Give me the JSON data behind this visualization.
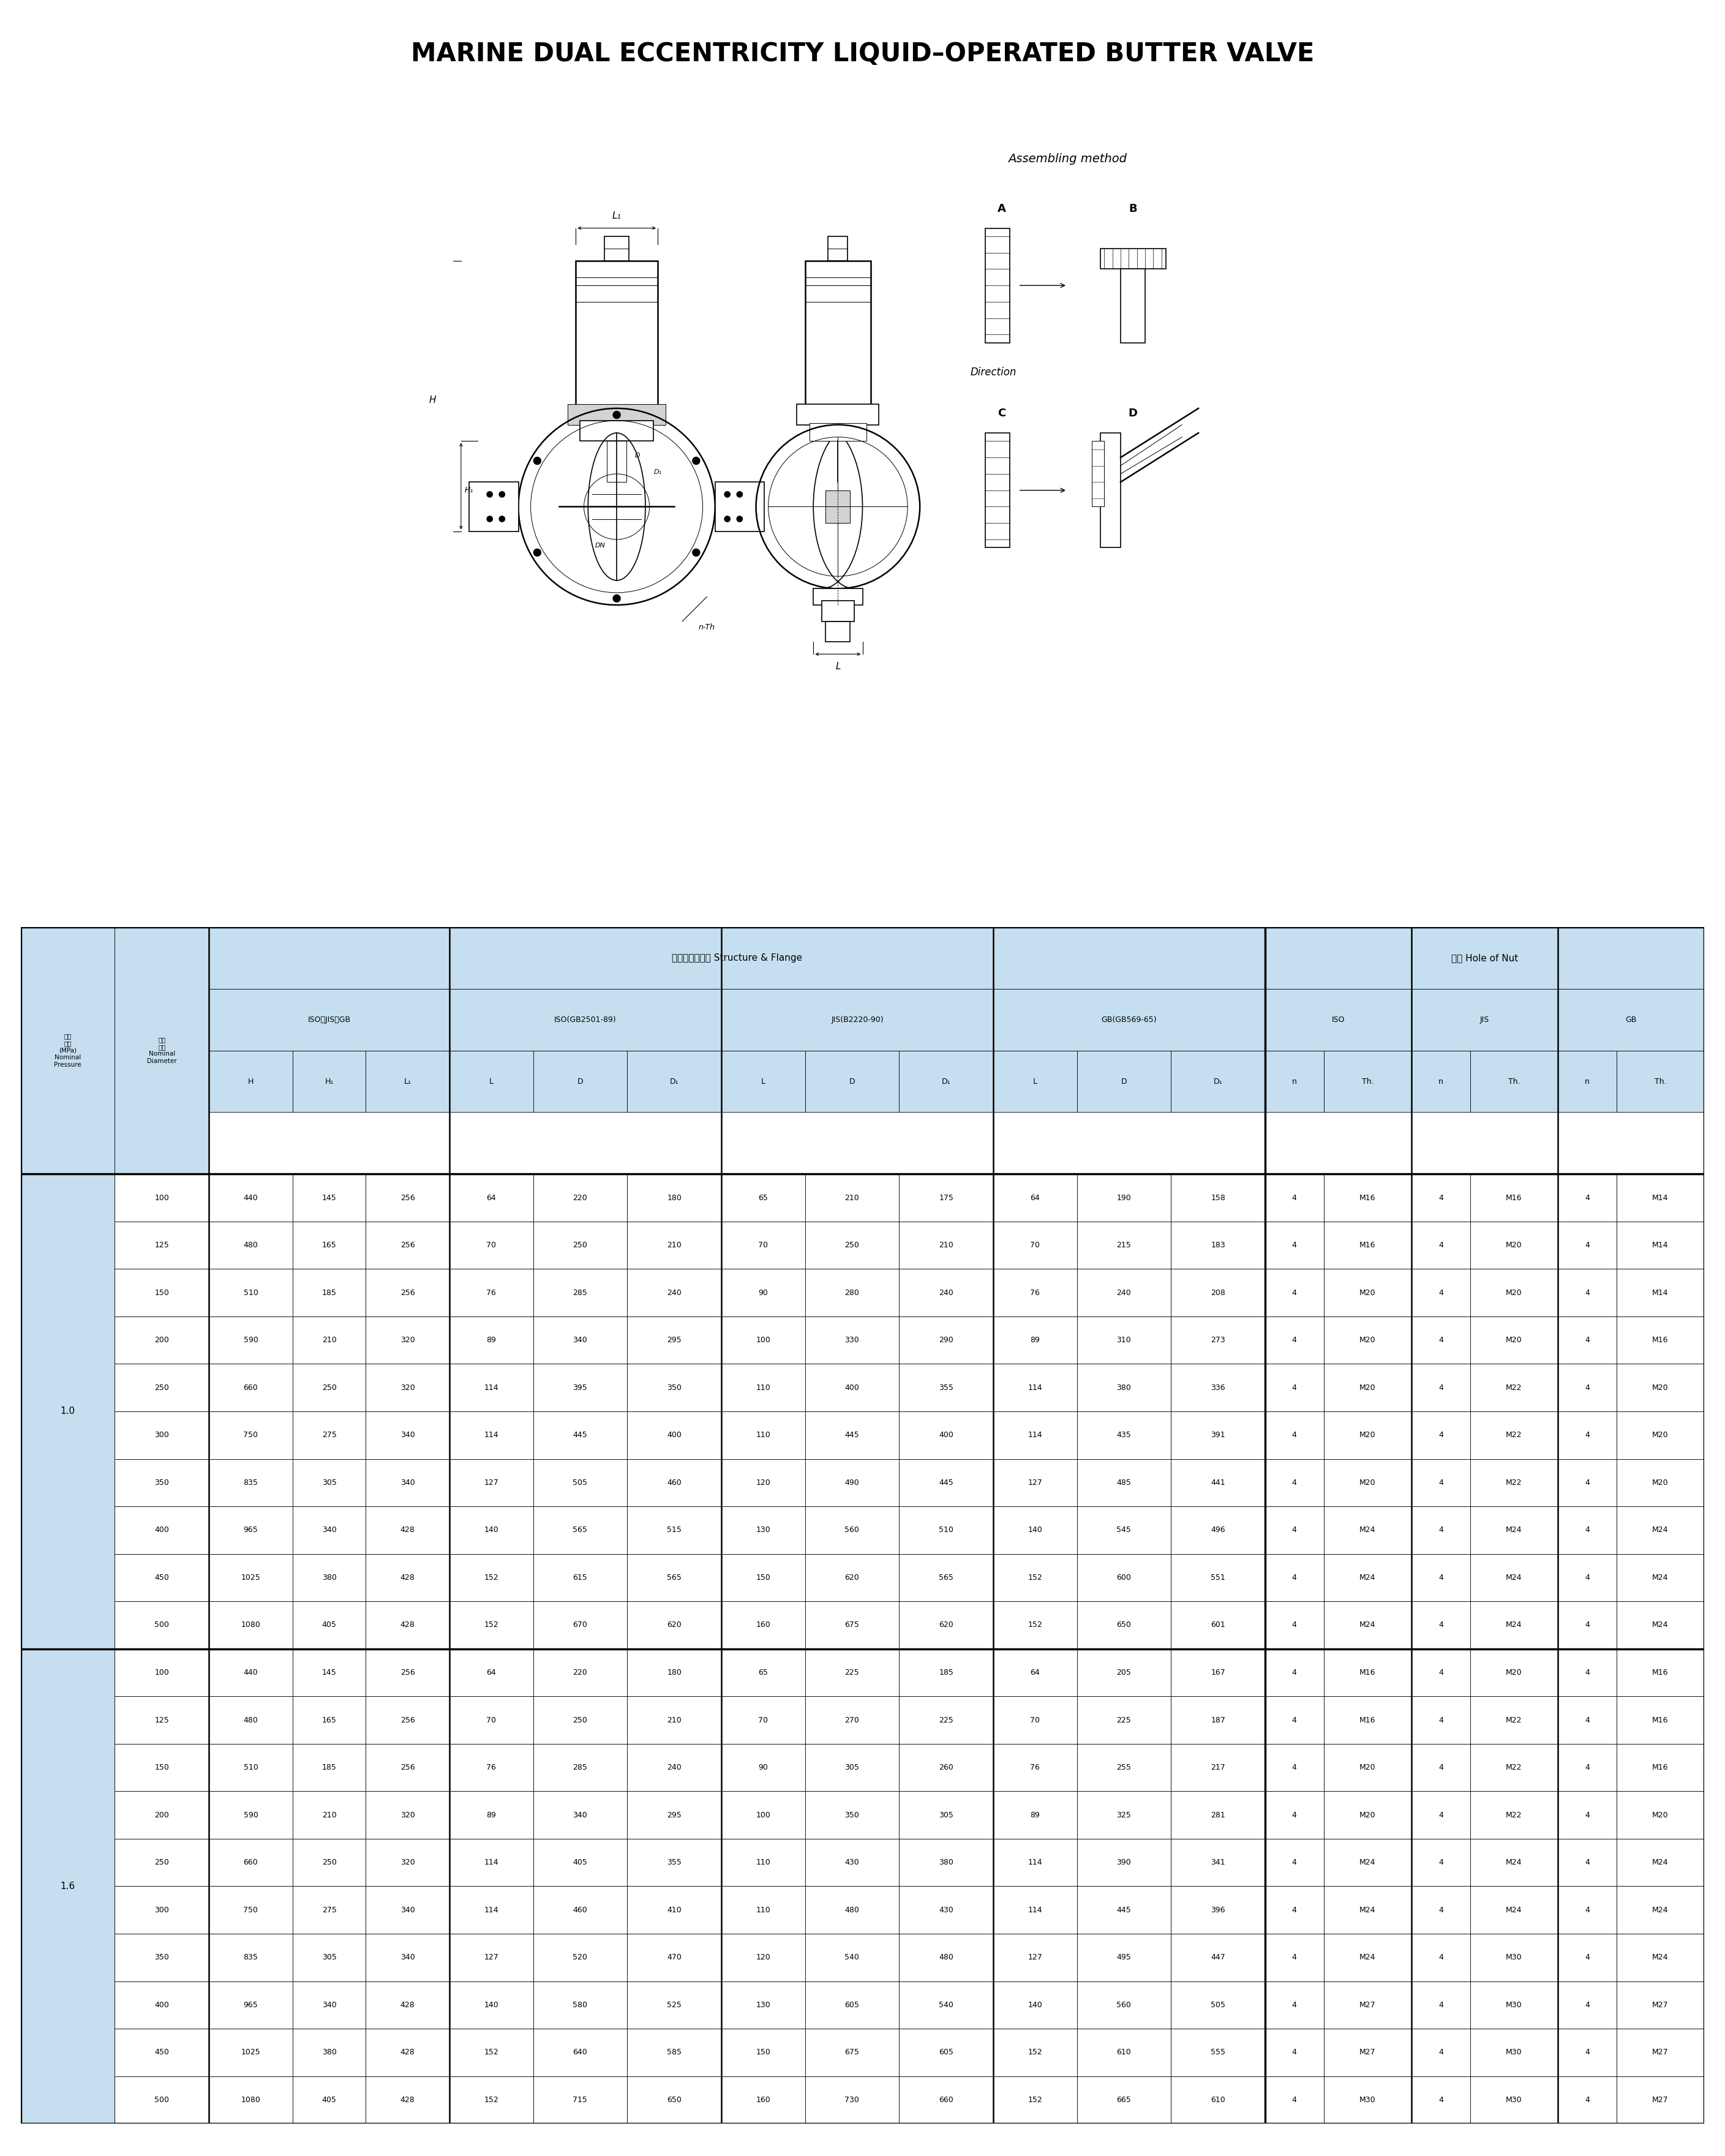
{
  "title": "MARINE DUAL ECCENTRICITY LIQUID–OPERATED BUTTER VALVE",
  "rows_1_0": [
    [
      100,
      440,
      145,
      256,
      64,
      220,
      180,
      65,
      210,
      175,
      64,
      190,
      158,
      4,
      "M16",
      4,
      "M16",
      4,
      "M14"
    ],
    [
      125,
      480,
      165,
      256,
      70,
      250,
      210,
      70,
      250,
      210,
      70,
      215,
      183,
      4,
      "M16",
      4,
      "M20",
      4,
      "M14"
    ],
    [
      150,
      510,
      185,
      256,
      76,
      285,
      240,
      90,
      280,
      240,
      76,
      240,
      208,
      4,
      "M20",
      4,
      "M20",
      4,
      "M14"
    ],
    [
      200,
      590,
      210,
      320,
      89,
      340,
      295,
      100,
      330,
      290,
      89,
      310,
      273,
      4,
      "M20",
      4,
      "M20",
      4,
      "M16"
    ],
    [
      250,
      660,
      250,
      320,
      114,
      395,
      350,
      110,
      400,
      355,
      114,
      380,
      336,
      4,
      "M20",
      4,
      "M22",
      4,
      "M20"
    ],
    [
      300,
      750,
      275,
      340,
      114,
      445,
      400,
      110,
      445,
      400,
      114,
      435,
      391,
      4,
      "M20",
      4,
      "M22",
      4,
      "M20"
    ],
    [
      350,
      835,
      305,
      340,
      127,
      505,
      460,
      120,
      490,
      445,
      127,
      485,
      441,
      4,
      "M20",
      4,
      "M22",
      4,
      "M20"
    ],
    [
      400,
      965,
      340,
      428,
      140,
      565,
      515,
      130,
      560,
      510,
      140,
      545,
      496,
      4,
      "M24",
      4,
      "M24",
      4,
      "M24"
    ],
    [
      450,
      1025,
      380,
      428,
      152,
      615,
      565,
      150,
      620,
      565,
      152,
      600,
      551,
      4,
      "M24",
      4,
      "M24",
      4,
      "M24"
    ],
    [
      500,
      1080,
      405,
      428,
      152,
      670,
      620,
      160,
      675,
      620,
      152,
      650,
      601,
      4,
      "M24",
      4,
      "M24",
      4,
      "M24"
    ]
  ],
  "rows_1_6": [
    [
      100,
      440,
      145,
      256,
      64,
      220,
      180,
      65,
      225,
      185,
      64,
      205,
      167,
      4,
      "M16",
      4,
      "M20",
      4,
      "M16"
    ],
    [
      125,
      480,
      165,
      256,
      70,
      250,
      210,
      70,
      270,
      225,
      70,
      225,
      187,
      4,
      "M16",
      4,
      "M22",
      4,
      "M16"
    ],
    [
      150,
      510,
      185,
      256,
      76,
      285,
      240,
      90,
      305,
      260,
      76,
      255,
      217,
      4,
      "M20",
      4,
      "M22",
      4,
      "M16"
    ],
    [
      200,
      590,
      210,
      320,
      89,
      340,
      295,
      100,
      350,
      305,
      89,
      325,
      281,
      4,
      "M20",
      4,
      "M22",
      4,
      "M20"
    ],
    [
      250,
      660,
      250,
      320,
      114,
      405,
      355,
      110,
      430,
      380,
      114,
      390,
      341,
      4,
      "M24",
      4,
      "M24",
      4,
      "M24"
    ],
    [
      300,
      750,
      275,
      340,
      114,
      460,
      410,
      110,
      480,
      430,
      114,
      445,
      396,
      4,
      "M24",
      4,
      "M24",
      4,
      "M24"
    ],
    [
      350,
      835,
      305,
      340,
      127,
      520,
      470,
      120,
      540,
      480,
      127,
      495,
      447,
      4,
      "M24",
      4,
      "M30",
      4,
      "M24"
    ],
    [
      400,
      965,
      340,
      428,
      140,
      580,
      525,
      130,
      605,
      540,
      140,
      560,
      505,
      4,
      "M27",
      4,
      "M30",
      4,
      "M27"
    ],
    [
      450,
      1025,
      380,
      428,
      152,
      640,
      585,
      150,
      675,
      605,
      152,
      610,
      555,
      4,
      "M27",
      4,
      "M30",
      4,
      "M27"
    ],
    [
      500,
      1080,
      405,
      428,
      152,
      715,
      650,
      160,
      730,
      660,
      152,
      665,
      610,
      4,
      "M30",
      4,
      "M30",
      4,
      "M27"
    ]
  ],
  "hdr_bg": "#c5dff0",
  "white": "#ffffff",
  "pressure_10": "1.0",
  "pressure_16": "1.6"
}
